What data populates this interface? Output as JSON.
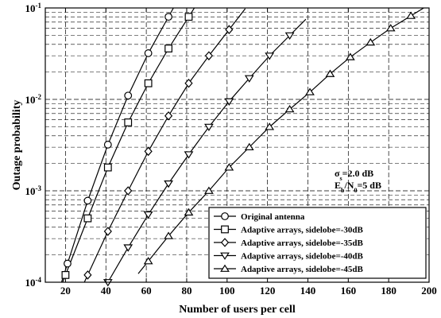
{
  "chart_data": {
    "type": "line",
    "xlabel": "Number of users per cell",
    "ylabel": "Outage probability",
    "xlim": [
      10,
      200
    ],
    "ylim": [
      0.0001,
      0.1
    ],
    "yscale": "log",
    "grid": true,
    "legend_position": "bottom-right",
    "xticks": [
      20,
      40,
      60,
      80,
      100,
      120,
      140,
      160,
      180,
      200
    ],
    "yticks": [
      {
        "value": 0.0001,
        "base": "10",
        "exp": "-4"
      },
      {
        "value": 0.001,
        "base": "10",
        "exp": "-3"
      },
      {
        "value": 0.01,
        "base": "10",
        "exp": "-2"
      },
      {
        "value": 0.1,
        "base": "10",
        "exp": "-1"
      }
    ],
    "annotation": {
      "line1": {
        "main": "σ",
        "sub": "s",
        "rest": "=2.0 dB"
      },
      "line2": {
        "main": "E",
        "sub": "b",
        "mid": "/N",
        "sub2": "0",
        "rest": "=5 dB"
      }
    },
    "series": [
      {
        "name": "Original antenna",
        "marker": "circle",
        "x": [
          21,
          31,
          41,
          51,
          61,
          71
        ],
        "y": [
          0.00016,
          0.00078,
          0.0032,
          0.011,
          0.032,
          0.08
        ]
      },
      {
        "name": "Adaptive arrays, sidelobe=-30dB",
        "marker": "square",
        "x": [
          20,
          31,
          41,
          51,
          61,
          71,
          81
        ],
        "y": [
          0.00012,
          0.0005,
          0.0018,
          0.0056,
          0.015,
          0.036,
          0.08
        ]
      },
      {
        "name": "Adaptive arrays, sidelobe=-35dB",
        "marker": "diamond",
        "x": [
          31,
          41,
          51,
          61,
          71,
          81,
          91,
          101
        ],
        "y": [
          0.00012,
          0.00036,
          0.001,
          0.0027,
          0.0066,
          0.015,
          0.03,
          0.058
        ]
      },
      {
        "name": "Adaptive arrays, sidelobe=-40dB",
        "marker": "triangle-down",
        "x": [
          41,
          51,
          61,
          71,
          81,
          91,
          101,
          111,
          121,
          131
        ],
        "y": [
          0.0001,
          0.00024,
          0.00055,
          0.0012,
          0.0025,
          0.005,
          0.0095,
          0.017,
          0.03,
          0.05
        ]
      },
      {
        "name": "Adaptive arrays, sidelobe=-45dB",
        "marker": "triangle-up",
        "x": [
          61,
          71,
          81,
          91,
          101,
          111,
          121,
          131,
          141,
          151,
          161,
          171,
          181,
          191
        ],
        "y": [
          0.00017,
          0.00032,
          0.00058,
          0.001,
          0.0018,
          0.003,
          0.005,
          0.0078,
          0.012,
          0.019,
          0.029,
          0.042,
          0.06,
          0.082
        ]
      }
    ]
  }
}
